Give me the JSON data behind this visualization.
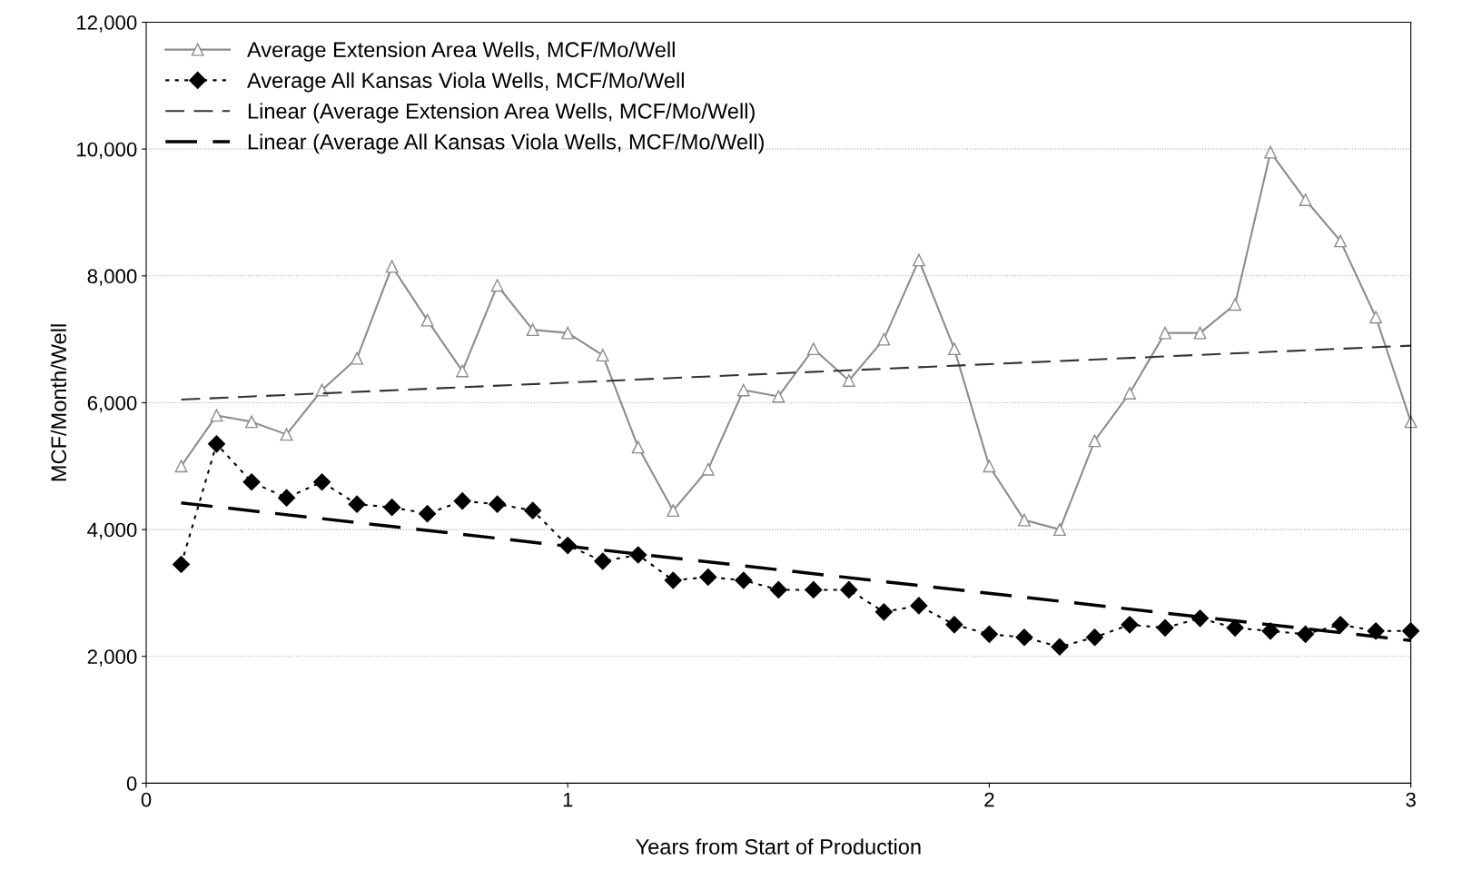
{
  "chart_data": {
    "type": "line",
    "xlabel": "Years from Start of Production",
    "ylabel": "MCF/Month/Well",
    "x": [
      0.083,
      0.167,
      0.25,
      0.333,
      0.417,
      0.5,
      0.583,
      0.667,
      0.75,
      0.833,
      0.917,
      1.0,
      1.083,
      1.167,
      1.25,
      1.333,
      1.417,
      1.5,
      1.583,
      1.667,
      1.75,
      1.833,
      1.917,
      2.0,
      2.083,
      2.167,
      2.25,
      2.333,
      2.417,
      2.5,
      2.583,
      2.667,
      2.75,
      2.833,
      2.917,
      3.0
    ],
    "series": [
      {
        "name": "Average Extension Area Wells, MCF/Mo/Well",
        "color": "#8c8c8c",
        "marker": "triangle",
        "line_style": "solid",
        "values": [
          5000,
          5800,
          5700,
          5500,
          6200,
          6700,
          8150,
          7300,
          6500,
          7850,
          7150,
          7100,
          6750,
          5300,
          4300,
          4950,
          6200,
          6100,
          6850,
          6350,
          7000,
          8250,
          6850,
          5000,
          4150,
          4000,
          5400,
          6150,
          7100,
          7100,
          7550,
          9950,
          9200,
          8550,
          7350,
          5700
        ]
      },
      {
        "name": "Average All Kansas Viola Wells, MCF/Mo/Well",
        "color": "#000000",
        "marker": "diamond",
        "line_style": "dotted",
        "values": [
          3450,
          5350,
          4750,
          4500,
          4750,
          4400,
          4350,
          4250,
          4450,
          4400,
          4300,
          3750,
          3500,
          3600,
          3200,
          3250,
          3200,
          3050,
          3050,
          3050,
          2700,
          2800,
          2500,
          2350,
          2300,
          2150,
          2300,
          2500,
          2450,
          2600,
          2450,
          2400,
          2350,
          2500,
          2400,
          2400
        ]
      },
      {
        "name": "Linear (Average Extension Area Wells, MCF/Mo/Well)",
        "color": "#333333",
        "marker": "none",
        "line_style": "dashed",
        "values": [
          6050,
          null,
          null,
          null,
          null,
          null,
          null,
          null,
          null,
          null,
          null,
          null,
          null,
          null,
          null,
          null,
          null,
          null,
          null,
          null,
          null,
          null,
          null,
          null,
          null,
          null,
          null,
          null,
          null,
          null,
          null,
          null,
          null,
          null,
          null,
          6900
        ]
      },
      {
        "name": "Linear (Average All Kansas Viola Wells, MCF/Mo/Well)",
        "color": "#000000",
        "marker": "none",
        "line_style": "dashed",
        "values": [
          4420,
          null,
          null,
          null,
          null,
          null,
          null,
          null,
          null,
          null,
          null,
          null,
          null,
          null,
          null,
          null,
          null,
          null,
          null,
          null,
          null,
          null,
          null,
          null,
          null,
          null,
          null,
          null,
          null,
          null,
          null,
          null,
          null,
          null,
          null,
          2250
        ]
      }
    ],
    "xlim": [
      0,
      3
    ],
    "xticks": [
      0,
      1,
      2,
      3
    ],
    "ylim": [
      0,
      12000
    ],
    "yticks": [
      0,
      {
        "value": 2000,
        "label": "2,000"
      },
      {
        "value": 4000,
        "label": "4,000"
      },
      {
        "value": 6000,
        "label": "6,000"
      },
      {
        "value": 8000,
        "label": "8,000"
      },
      {
        "value": 10000,
        "label": "10,000"
      },
      {
        "value": 12000,
        "label": "12,000"
      }
    ],
    "grid": "y",
    "legend": "top left"
  }
}
